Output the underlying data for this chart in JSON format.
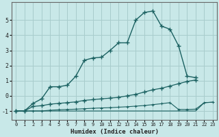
{
  "xlabel": "Humidex (Indice chaleur)",
  "background_color": "#c8e8e8",
  "grid_color": "#a8cccc",
  "line_color": "#1a6060",
  "xlim": [
    -0.5,
    23.5
  ],
  "ylim": [
    -1.6,
    6.2
  ],
  "yticks": [
    -1,
    0,
    1,
    2,
    3,
    4,
    5
  ],
  "xticks": [
    0,
    1,
    2,
    3,
    4,
    5,
    6,
    7,
    8,
    9,
    10,
    11,
    12,
    13,
    14,
    15,
    16,
    17,
    18,
    19,
    20,
    21,
    22,
    23
  ],
  "curve1_x": [
    0,
    1,
    2,
    3,
    4,
    5,
    6,
    7,
    8,
    9,
    10,
    11,
    12,
    13,
    14,
    15,
    16,
    17,
    18,
    19,
    20,
    21,
    22,
    23
  ],
  "curve1_y": [
    -1.0,
    -1.0,
    -0.5,
    -0.2,
    0.6,
    0.6,
    0.7,
    1.3,
    2.35,
    2.5,
    2.55,
    3.0,
    3.5,
    3.5,
    5.0,
    5.5,
    5.6,
    4.6,
    4.4,
    3.3,
    1.3,
    1.2,
    null,
    null
  ],
  "curve2_x": [
    0,
    1,
    2,
    3,
    4,
    5,
    6,
    7,
    8,
    9,
    10,
    11,
    12,
    13,
    14,
    15,
    16,
    17,
    18,
    19,
    20,
    21,
    22,
    23
  ],
  "curve2_y": [
    -1.0,
    -1.0,
    -0.7,
    -0.65,
    -0.55,
    -0.5,
    -0.45,
    -0.4,
    -0.3,
    -0.25,
    -0.2,
    -0.15,
    -0.1,
    0.0,
    0.1,
    0.25,
    0.4,
    0.5,
    0.65,
    0.8,
    0.95,
    1.05,
    null,
    null
  ],
  "curve3_x": [
    0,
    1,
    2,
    3,
    4,
    5,
    6,
    7,
    8,
    9,
    10,
    11,
    12,
    13,
    14,
    15,
    16,
    17,
    18,
    19,
    20,
    21,
    22,
    23
  ],
  "curve3_y": [
    -1.0,
    -1.0,
    -1.0,
    -1.0,
    -0.95,
    -0.92,
    -0.9,
    -0.88,
    -0.85,
    -0.82,
    -0.8,
    -0.78,
    -0.75,
    -0.72,
    -0.68,
    -0.64,
    -0.58,
    -0.52,
    -0.45,
    -0.9,
    -0.9,
    -0.88,
    -0.45,
    -0.42
  ],
  "curve4_x": [
    0,
    1,
    2,
    3,
    4,
    5,
    6,
    7,
    8,
    9,
    10,
    11,
    12,
    13,
    14,
    15,
    16,
    17,
    18,
    19,
    20,
    21,
    22,
    23
  ],
  "curve4_y": [
    -1.0,
    -1.0,
    -1.0,
    -1.0,
    -1.0,
    -1.0,
    -1.0,
    -1.0,
    -1.0,
    -1.0,
    -1.0,
    -1.0,
    -1.0,
    -1.0,
    -1.0,
    -1.0,
    -1.0,
    -1.0,
    -1.0,
    -1.0,
    -1.0,
    -1.0,
    -0.45,
    -0.42
  ]
}
